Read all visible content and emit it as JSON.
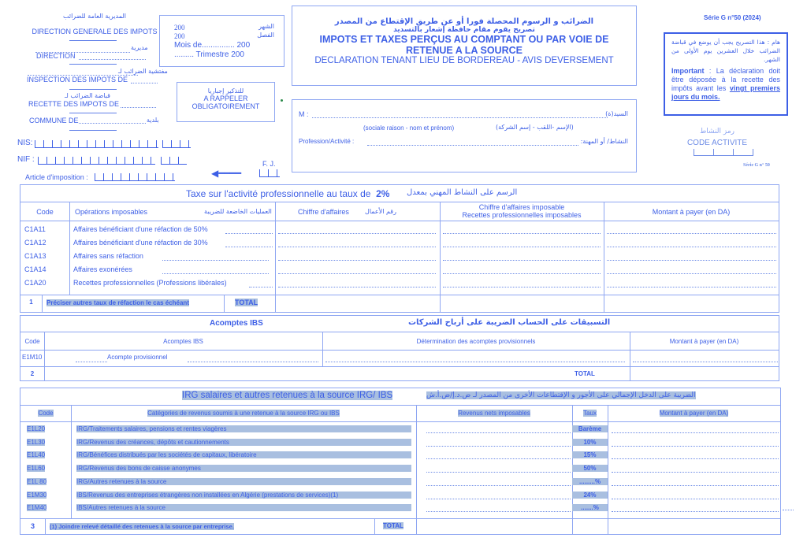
{
  "header_left": {
    "dgi_ar": "المديرية العامة للضرائب",
    "dgi": "DIRECTION GENERALE DES IMPOTS",
    "direction_ar": "مديرية",
    "direction": "DIRECTION",
    "inspection_ar": "مفتشية الضرائب لـ",
    "inspection": "INSPECTION DES IMPOTS DE",
    "recette_ar": "قباضة الضرائب لـ",
    "recette": "RECETTE DES IMPOTS DE",
    "commune": "COMMUNE DE",
    "commune_ar": "بلدية",
    "nis": "NIS:",
    "nif": "NIF :",
    "article": "Article d'imposition :",
    "fj": "F. J."
  },
  "period_box": {
    "line1": "200",
    "line1_ar": "الشهر",
    "line2": "200",
    "line2_ar": "الفصل",
    "mois": "Mois de............... 200",
    "trimestre": "......... Trimestre  200"
  },
  "reminder_box": {
    "ar": "للتذكير إجباريا",
    "line1": "A RAPPELER",
    "line2": "OBLIGATOIREMENT"
  },
  "title_box": {
    "ar1": "الضرائب و الرسوم المحصلة فورا أو عن طريق الإقتطاع من المصدر",
    "ar2": "تصريح يقوم مقام حافظة إشعار بالتسديد",
    "title1": "IMPOTS ET TAXES PERÇUS AU COMPTANT OU PAR VOIE DE",
    "title2": "RETENUE A LA SOURCE",
    "subtitle": "DECLARATION TENANT LIEU DE BORDEREAU - AVIS DEVERSEMENT"
  },
  "identity_box": {
    "m_label": "M :",
    "m_ar": "السيد(ة)",
    "m_hint": "(sociale  raison - nom et  prénom)",
    "m_hint_ar": "(الإسم -اللقب - إسم الشركة)",
    "profession": "Profession/Activité :",
    "profession_ar": "النشاط/ أو المهنة:"
  },
  "right": {
    "serie": "Série  G n°50 (2024)",
    "important_ar": "هام : هذا التصريح يجب أن يوضع في قباضة الضرائب خلال العشرين يوم الأولى من الشهر.",
    "important_label": "Important",
    "important_text": " : La déclaration doit être déposée à la recette des impôts avant les ",
    "important_em": "vingt premiers jours du mois.",
    "code_ar": "رمز النشاط",
    "code": "CODE ACTIVITE",
    "serie_small": "Série G n° 50"
  },
  "tap": {
    "title": "Taxe sur l'activité professionnelle au taux de",
    "rate": "2%",
    "title_ar": "الرسم على النشاط المهني بمعدل",
    "headers": {
      "code": "Code",
      "ops": "Opérations imposables",
      "ops_ar": "العمليات الخاضعة للضريبة",
      "ca": "Chiffre d'affaires",
      "ca_ar": "رقم الأعمال",
      "cai1": "Chiffre d'affaires imposable",
      "cai2": "Recettes professionnelles imposables",
      "montant": "Montant à payer (en DA)"
    },
    "rows": [
      {
        "code": "C1A11",
        "label": "Affaires bénéficiant d'une réfaction de 50%"
      },
      {
        "code": "C1A12",
        "label": "Affaires bénéficiant d'une réfaction de 30%"
      },
      {
        "code": "C1A13",
        "label": "Affaires sans réfaction"
      },
      {
        "code": "C1A14",
        "label": "Affaires  exonérées"
      },
      {
        "code": "C1A20",
        "label": "Recettes professionnelles (Professions libérales)"
      }
    ],
    "total_num": "1",
    "total_note": "Préciser autres taux de réfaction le cas échéant",
    "total": "TOTAL"
  },
  "ibs": {
    "title": "Acomptes IBS",
    "title_ar": "التسبيقات على الحساب الضريبة على أرباح الشركات",
    "headers": {
      "code": "Code",
      "acomptes": "Acomptes IBS",
      "det": "Détermination des acomptes provisionnels",
      "montant": "Montant à payer (en DA)"
    },
    "rows": [
      {
        "code": "E1M10",
        "label": "Acompte provisionnel"
      }
    ],
    "total_num": "2",
    "total": "TOTAL"
  },
  "irg": {
    "title": "IRG salaires et autres retenues à la source IRG/ IBS",
    "title_ar": "الضريبة على الدخل الإجمالي على الأجور و الإقتطاعات الأخرى من المصدر لـ ض.د.إ/ض.أ.ش",
    "headers": {
      "code": "Code",
      "cat": "Catégories de revenus soumis à une retenue à la source IRG ou IBS",
      "rev": "Revenus nets imposables",
      "taux": "Taux",
      "montant": "Montant à payer (en DA)"
    },
    "rows": [
      {
        "code": "E1L20",
        "label": "IRG/Traitements salaires, pensions et rentes viagères",
        "taux": "Barème"
      },
      {
        "code": "E1L30",
        "label": "IRG/Revenus des créances, dépôts et cautionnements",
        "taux": "10%"
      },
      {
        "code": "E1L40",
        "label": "IRG/Bénéfices distribués par les sociétés de capitaux, libératoire",
        "taux": "15%"
      },
      {
        "code": "E1L60",
        "label": "IRG/Revenus des bons de caisse anonymes",
        "taux": "50%"
      },
      {
        "code": "E1L 80",
        "label": "IRG/Autres retenues à la source",
        "taux": ".........%"
      },
      {
        "code": "E1M30",
        "label": "IBS/Revenus des entreprises étrangères non installées en Algérie (prestations de services)(1)",
        "taux": "24%"
      },
      {
        "code": "E1M40",
        "label": "IBS/Autres retenues à la source",
        "taux": ".......%"
      }
    ],
    "total_num": "3",
    "total_note": "(1)   Joindre relevé détaillé des retenues à la source par entreprise.",
    "total": "TOTAL"
  },
  "colors": {
    "text": "#3d5fe6",
    "border": "#8ea6f2",
    "highlight": "#a9bfe0"
  }
}
